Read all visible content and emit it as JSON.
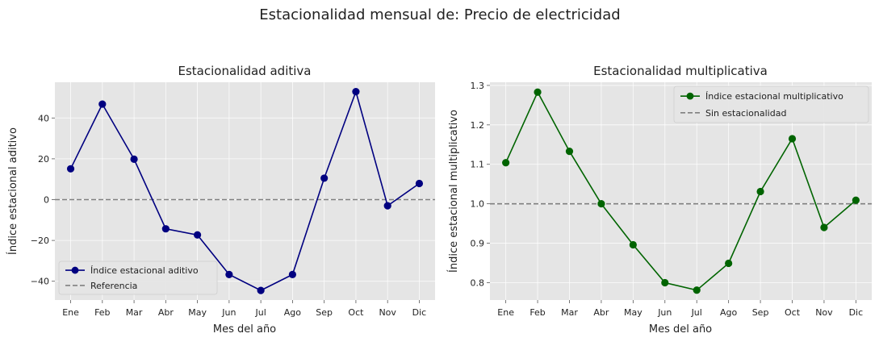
{
  "figure": {
    "suptitle": "Estacionalidad mensual de: Precio de electricidad"
  },
  "chart_data": [
    {
      "type": "line",
      "title": "Estacionalidad aditiva",
      "xlabel": "Mes del año",
      "ylabel": "Índice estacional aditivo",
      "categories": [
        "Ene",
        "Feb",
        "Mar",
        "Abr",
        "May",
        "Jun",
        "Jul",
        "Ago",
        "Sep",
        "Oct",
        "Nov",
        "Dic"
      ],
      "series": [
        {
          "name": "Índice estacional aditivo",
          "color": "#000080",
          "marker": "circle",
          "values": [
            15.1,
            46.8,
            19.8,
            -14.3,
            -17.3,
            -36.7,
            -44.5,
            -36.7,
            10.5,
            52.9,
            -3.0,
            7.9
          ]
        }
      ],
      "reference": {
        "name": "Referencia",
        "value": 0,
        "color": "#808080",
        "style": "dashed"
      },
      "ylim": [
        -49.2,
        57.5
      ],
      "yticks": [
        -40,
        -20,
        0,
        20,
        40
      ],
      "ytick_labels": [
        "−40",
        "−20",
        "0",
        "20",
        "40"
      ],
      "grid": true,
      "legend_position": "lower-left"
    },
    {
      "type": "line",
      "title": "Estacionalidad multiplicativa",
      "xlabel": "Mes del año",
      "ylabel": "Índice estacional multiplicativo",
      "categories": [
        "Ene",
        "Feb",
        "Mar",
        "Abr",
        "May",
        "Jun",
        "Jul",
        "Ago",
        "Sep",
        "Oct",
        "Nov",
        "Dic"
      ],
      "series": [
        {
          "name": "Índice estacional multiplicativo",
          "color": "#006400",
          "marker": "circle",
          "values": [
            1.104,
            1.283,
            1.133,
            1.0,
            0.896,
            0.8,
            0.781,
            0.849,
            1.031,
            1.165,
            0.94,
            1.009
          ]
        }
      ],
      "reference": {
        "name": "Sin estacionalidad",
        "value": 1.0,
        "color": "#808080",
        "style": "dashed"
      },
      "ylim": [
        0.756,
        1.308
      ],
      "yticks": [
        0.8,
        0.9,
        1.0,
        1.1,
        1.2,
        1.3
      ],
      "ytick_labels": [
        "0.8",
        "0.9",
        "1.0",
        "1.1",
        "1.2",
        "1.3"
      ],
      "grid": true,
      "legend_position": "top-right"
    }
  ]
}
